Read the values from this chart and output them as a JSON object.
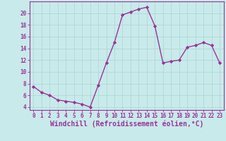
{
  "x": [
    0,
    1,
    2,
    3,
    4,
    5,
    6,
    7,
    8,
    9,
    10,
    11,
    12,
    13,
    14,
    15,
    16,
    17,
    18,
    19,
    20,
    21,
    22,
    23
  ],
  "y": [
    7.5,
    6.5,
    6.0,
    5.2,
    5.0,
    4.8,
    4.5,
    4.0,
    7.7,
    11.5,
    15.0,
    19.7,
    20.2,
    20.7,
    21.0,
    17.8,
    11.5,
    11.8,
    12.0,
    14.2,
    14.5,
    15.0,
    14.5,
    11.5
  ],
  "line_color": "#993399",
  "marker": "D",
  "marker_size": 2.2,
  "bg_color": "#c8eaea",
  "grid_color": "#b0d8d8",
  "xlabel": "Windchill (Refroidissement éolien,°C)",
  "ylim": [
    3.5,
    22
  ],
  "xlim": [
    -0.5,
    23.5
  ],
  "yticks": [
    4,
    6,
    8,
    10,
    12,
    14,
    16,
    18,
    20
  ],
  "xticks": [
    0,
    1,
    2,
    3,
    4,
    5,
    6,
    7,
    8,
    9,
    10,
    11,
    12,
    13,
    14,
    15,
    16,
    17,
    18,
    19,
    20,
    21,
    22,
    23
  ],
  "tick_label_fontsize": 5.5,
  "xlabel_fontsize": 7.0,
  "line_width": 1.0,
  "axis_color": "#993399",
  "spine_color": "#993399"
}
